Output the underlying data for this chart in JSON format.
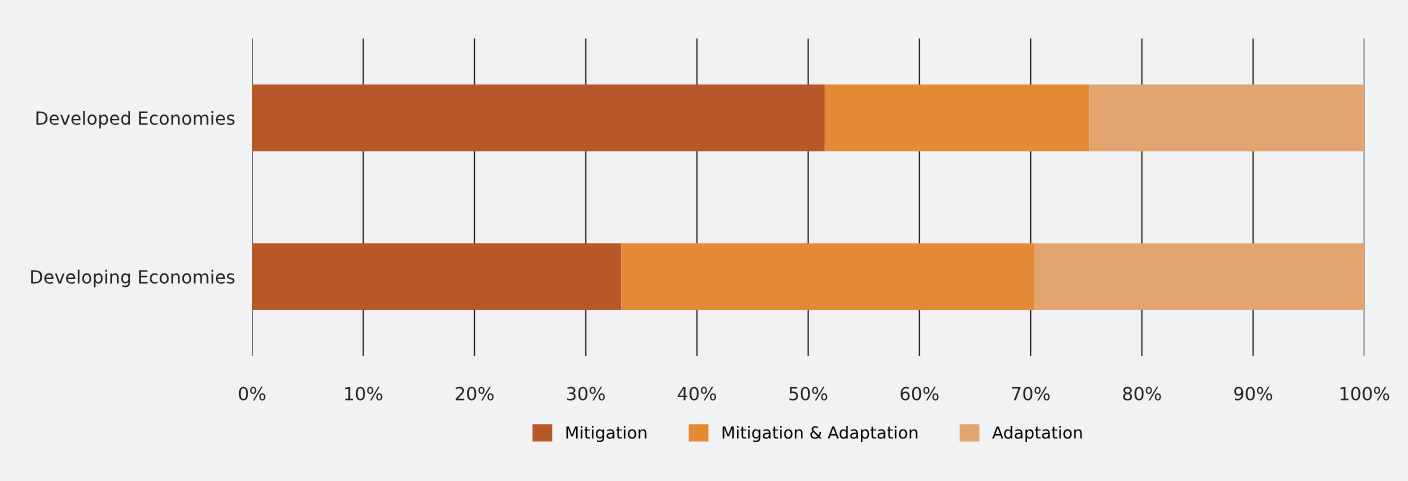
{
  "chart_data": {
    "type": "bar",
    "orientation": "horizontal",
    "stacked": true,
    "categories": [
      "Developed Economies",
      "Developing Economies"
    ],
    "series": [
      {
        "name": "Mitigation",
        "color": "#b85728",
        "values": [
          51.5,
          33.2
        ]
      },
      {
        "name": "Mitigation & Adaptation",
        "color": "#e58a34",
        "values": [
          23.8,
          37.1
        ]
      },
      {
        "name": "Adaptation",
        "color": "#e3a470",
        "values": [
          24.7,
          29.7
        ]
      }
    ],
    "xlim": [
      0,
      100
    ],
    "xticks": [
      {
        "value": 0,
        "label": "0%"
      },
      {
        "value": 10,
        "label": "10%"
      },
      {
        "value": 20,
        "label": "20%"
      },
      {
        "value": 30,
        "label": "30%"
      },
      {
        "value": 40,
        "label": "40%"
      },
      {
        "value": 50,
        "label": "50%"
      },
      {
        "value": 60,
        "label": "60%"
      },
      {
        "value": 70,
        "label": "70%"
      },
      {
        "value": 80,
        "label": "80%"
      },
      {
        "value": 90,
        "label": "90%"
      },
      {
        "value": 100,
        "label": "100%"
      }
    ],
    "grid": "x",
    "legend": "bottom"
  }
}
